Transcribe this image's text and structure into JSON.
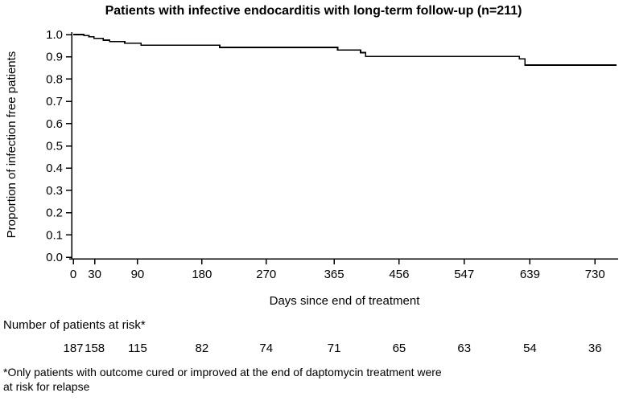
{
  "chart_data": {
    "type": "line",
    "subtype": "kaplan-meier-step",
    "title": "Patients with infective endocarditis with long-term follow-up (n=211)",
    "xlabel": "Days since end of treatment",
    "ylabel": "Proportion of infection free patients",
    "xlim": [
      0,
      762
    ],
    "ylim": [
      0.0,
      1.0
    ],
    "x_ticks": [
      0,
      30,
      90,
      180,
      270,
      365,
      456,
      547,
      639,
      730
    ],
    "y_ticks": [
      0.0,
      0.1,
      0.2,
      0.3,
      0.4,
      0.5,
      0.6,
      0.7,
      0.8,
      0.9,
      1.0
    ],
    "grid": false,
    "legend": "none",
    "line_color": "#000000",
    "series": [
      {
        "name": "Proportion of infection free patients",
        "points": [
          [
            0,
            1.0
          ],
          [
            15,
            0.995
          ],
          [
            22,
            0.99
          ],
          [
            29,
            0.983
          ],
          [
            42,
            0.975
          ],
          [
            51,
            0.968
          ],
          [
            72,
            0.961
          ],
          [
            95,
            0.952
          ],
          [
            205,
            0.942
          ],
          [
            370,
            0.93
          ],
          [
            402,
            0.919
          ],
          [
            409,
            0.902
          ],
          [
            624,
            0.891
          ],
          [
            632,
            0.863
          ],
          [
            760,
            0.863
          ]
        ]
      }
    ]
  },
  "risk_table": {
    "label": "Number of patients at risk*",
    "values": [
      187,
      158,
      115,
      82,
      74,
      71,
      65,
      63,
      54,
      36
    ]
  },
  "footnote": {
    "line1": "*Only patients with outcome cured or improved at the end of daptomycin treatment were",
    "line2": " at risk for relapse"
  }
}
